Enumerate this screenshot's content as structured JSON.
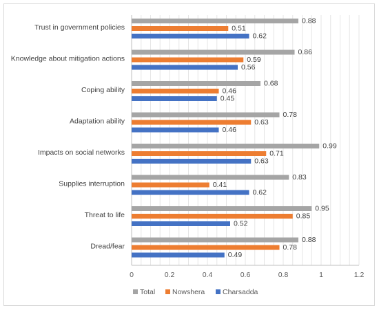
{
  "chart_data": {
    "type": "bar",
    "orientation": "horizontal",
    "categories": [
      "Trust in government policies",
      "Knowledge about mitigation actions",
      "Coping ability",
      "Adaptation ability",
      "Impacts on social networks",
      "Supplies interruption",
      "Threat to life",
      "Dread/fear"
    ],
    "series": [
      {
        "name": "Total",
        "color": "#a5a5a5",
        "values": [
          0.88,
          0.86,
          0.68,
          0.78,
          0.99,
          0.83,
          0.95,
          0.88
        ]
      },
      {
        "name": "Nowshera",
        "color": "#ed7d31",
        "values": [
          0.51,
          0.59,
          0.46,
          0.63,
          0.71,
          0.41,
          0.85,
          0.78
        ]
      },
      {
        "name": "Charsadda",
        "color": "#4472c4",
        "values": [
          0.62,
          0.56,
          0.45,
          0.46,
          0.63,
          0.62,
          0.52,
          0.49
        ]
      }
    ],
    "xlim": [
      0,
      1.2
    ],
    "xticks": [
      "0",
      "0.2",
      "0.4",
      "0.6",
      "0.8",
      "1",
      "1.2"
    ],
    "grid": "vertical",
    "legend": "bottom"
  }
}
